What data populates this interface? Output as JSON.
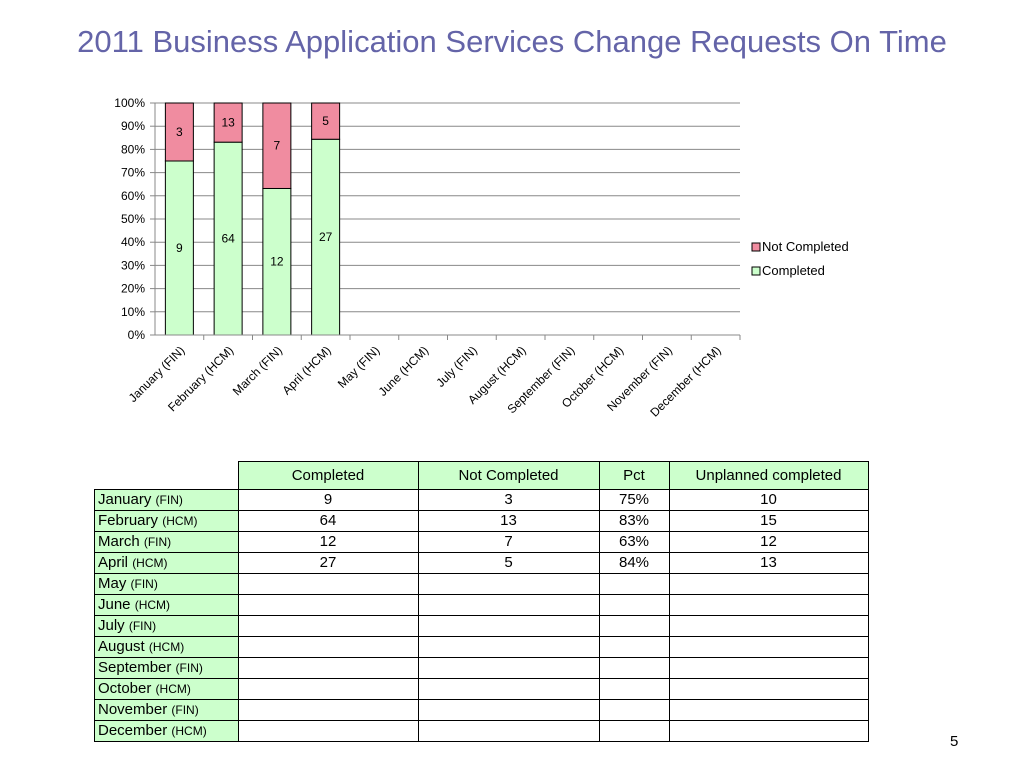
{
  "title": "2011 Business Application Services Change Requests On Time",
  "page_number": "5",
  "colors": {
    "completed": "#ccffcc",
    "not_completed": "#f08ca0",
    "title": "#6464a8"
  },
  "chart_data": {
    "type": "bar",
    "stacked": true,
    "normalized": true,
    "categories": [
      "January (FIN)",
      "February (HCM)",
      "March (FIN)",
      "April (HCM)",
      "May (FIN)",
      "June (HCM)",
      "July (FIN)",
      "August (HCM)",
      "September (FIN)",
      "October (HCM)",
      "November (FIN)",
      "December (HCM)"
    ],
    "series": [
      {
        "name": "Completed",
        "values": [
          9,
          64,
          12,
          27,
          null,
          null,
          null,
          null,
          null,
          null,
          null,
          null
        ]
      },
      {
        "name": "Not Completed",
        "values": [
          3,
          13,
          7,
          5,
          null,
          null,
          null,
          null,
          null,
          null,
          null,
          null
        ]
      }
    ],
    "ylim": [
      0,
      100
    ],
    "yticks": [
      "0%",
      "10%",
      "20%",
      "30%",
      "40%",
      "50%",
      "60%",
      "70%",
      "80%",
      "90%",
      "100%"
    ],
    "legend_position": "right",
    "legend": [
      "Not Completed",
      "Completed"
    ],
    "grid": true
  },
  "table": {
    "headers": [
      "Completed",
      "Not Completed",
      "Pct",
      "Unplanned completed"
    ],
    "rows": [
      {
        "month": "January",
        "group": "(FIN)",
        "cells": [
          "9",
          "3",
          "75%",
          "10"
        ]
      },
      {
        "month": "February",
        "group": "(HCM)",
        "cells": [
          "64",
          "13",
          "83%",
          "15"
        ]
      },
      {
        "month": "March",
        "group": "(FIN)",
        "cells": [
          "12",
          "7",
          "63%",
          "12"
        ]
      },
      {
        "month": "April",
        "group": "(HCM)",
        "cells": [
          "27",
          "5",
          "84%",
          "13"
        ]
      },
      {
        "month": "May",
        "group": "(FIN)",
        "cells": [
          "",
          "",
          "",
          ""
        ]
      },
      {
        "month": "June",
        "group": "(HCM)",
        "cells": [
          "",
          "",
          "",
          ""
        ]
      },
      {
        "month": "July",
        "group": "(FIN)",
        "cells": [
          "",
          "",
          "",
          ""
        ]
      },
      {
        "month": "August",
        "group": "(HCM)",
        "cells": [
          "",
          "",
          "",
          ""
        ]
      },
      {
        "month": "September",
        "group": "(FIN)",
        "cells": [
          "",
          "",
          "",
          ""
        ]
      },
      {
        "month": "October",
        "group": "(HCM)",
        "cells": [
          "",
          "",
          "",
          ""
        ]
      },
      {
        "month": "November",
        "group": "(FIN)",
        "cells": [
          "",
          "",
          "",
          ""
        ]
      },
      {
        "month": "December",
        "group": "(HCM)",
        "cells": [
          "",
          "",
          "",
          ""
        ]
      }
    ]
  }
}
